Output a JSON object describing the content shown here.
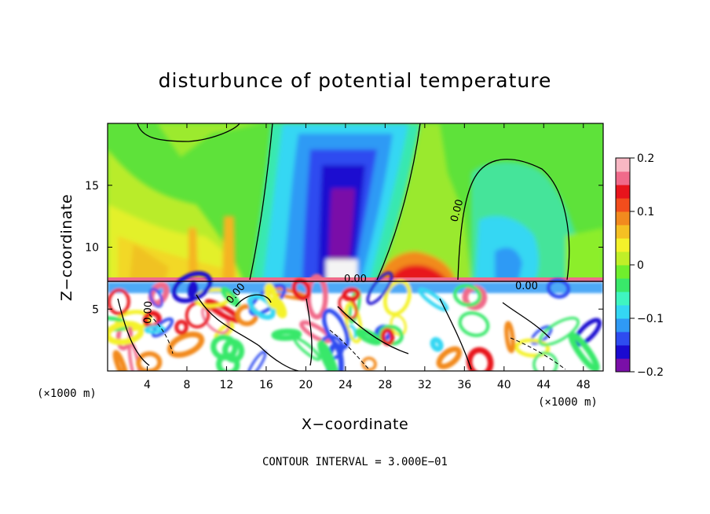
{
  "chart_data": {
    "type": "heatmap",
    "title": "disturbunce of potential temperature",
    "xlabel": "X−coordinate",
    "ylabel": "Z−coordinate",
    "x_unit": "(×1000 m)",
    "z_unit": "(×1000 m)",
    "xlim": [
      0,
      50
    ],
    "ylim": [
      0,
      20
    ],
    "x_ticks": [
      4,
      8,
      12,
      16,
      20,
      24,
      28,
      32,
      36,
      40,
      44,
      48
    ],
    "y_ticks": [
      5,
      10,
      15
    ],
    "colorbar": {
      "ticks": [
        0.2,
        0.1,
        0,
        -0.1,
        -0.2
      ],
      "tick_labels": [
        "0.2",
        "0.1",
        "0",
        "−0.1",
        "−0.2"
      ],
      "range": [
        -0.2,
        0.2
      ],
      "colors": [
        "#7a0fa8",
        "#1a0ad0",
        "#2e4cf0",
        "#2f9af5",
        "#34d7f3",
        "#3ff5c0",
        "#39e86a",
        "#70ef2d",
        "#c0ef28",
        "#f4f22a",
        "#f5c023",
        "#f28a1e",
        "#f24d1c",
        "#e8141c",
        "#f06a8a",
        "#f8b7c3"
      ]
    },
    "contour_labels": [
      "0.00",
      "0.00",
      "0.00",
      "0.00",
      "0.00"
    ],
    "contour_interval_text": "CONTOUR INTERVAL = 3.000E−01",
    "grid": false
  }
}
